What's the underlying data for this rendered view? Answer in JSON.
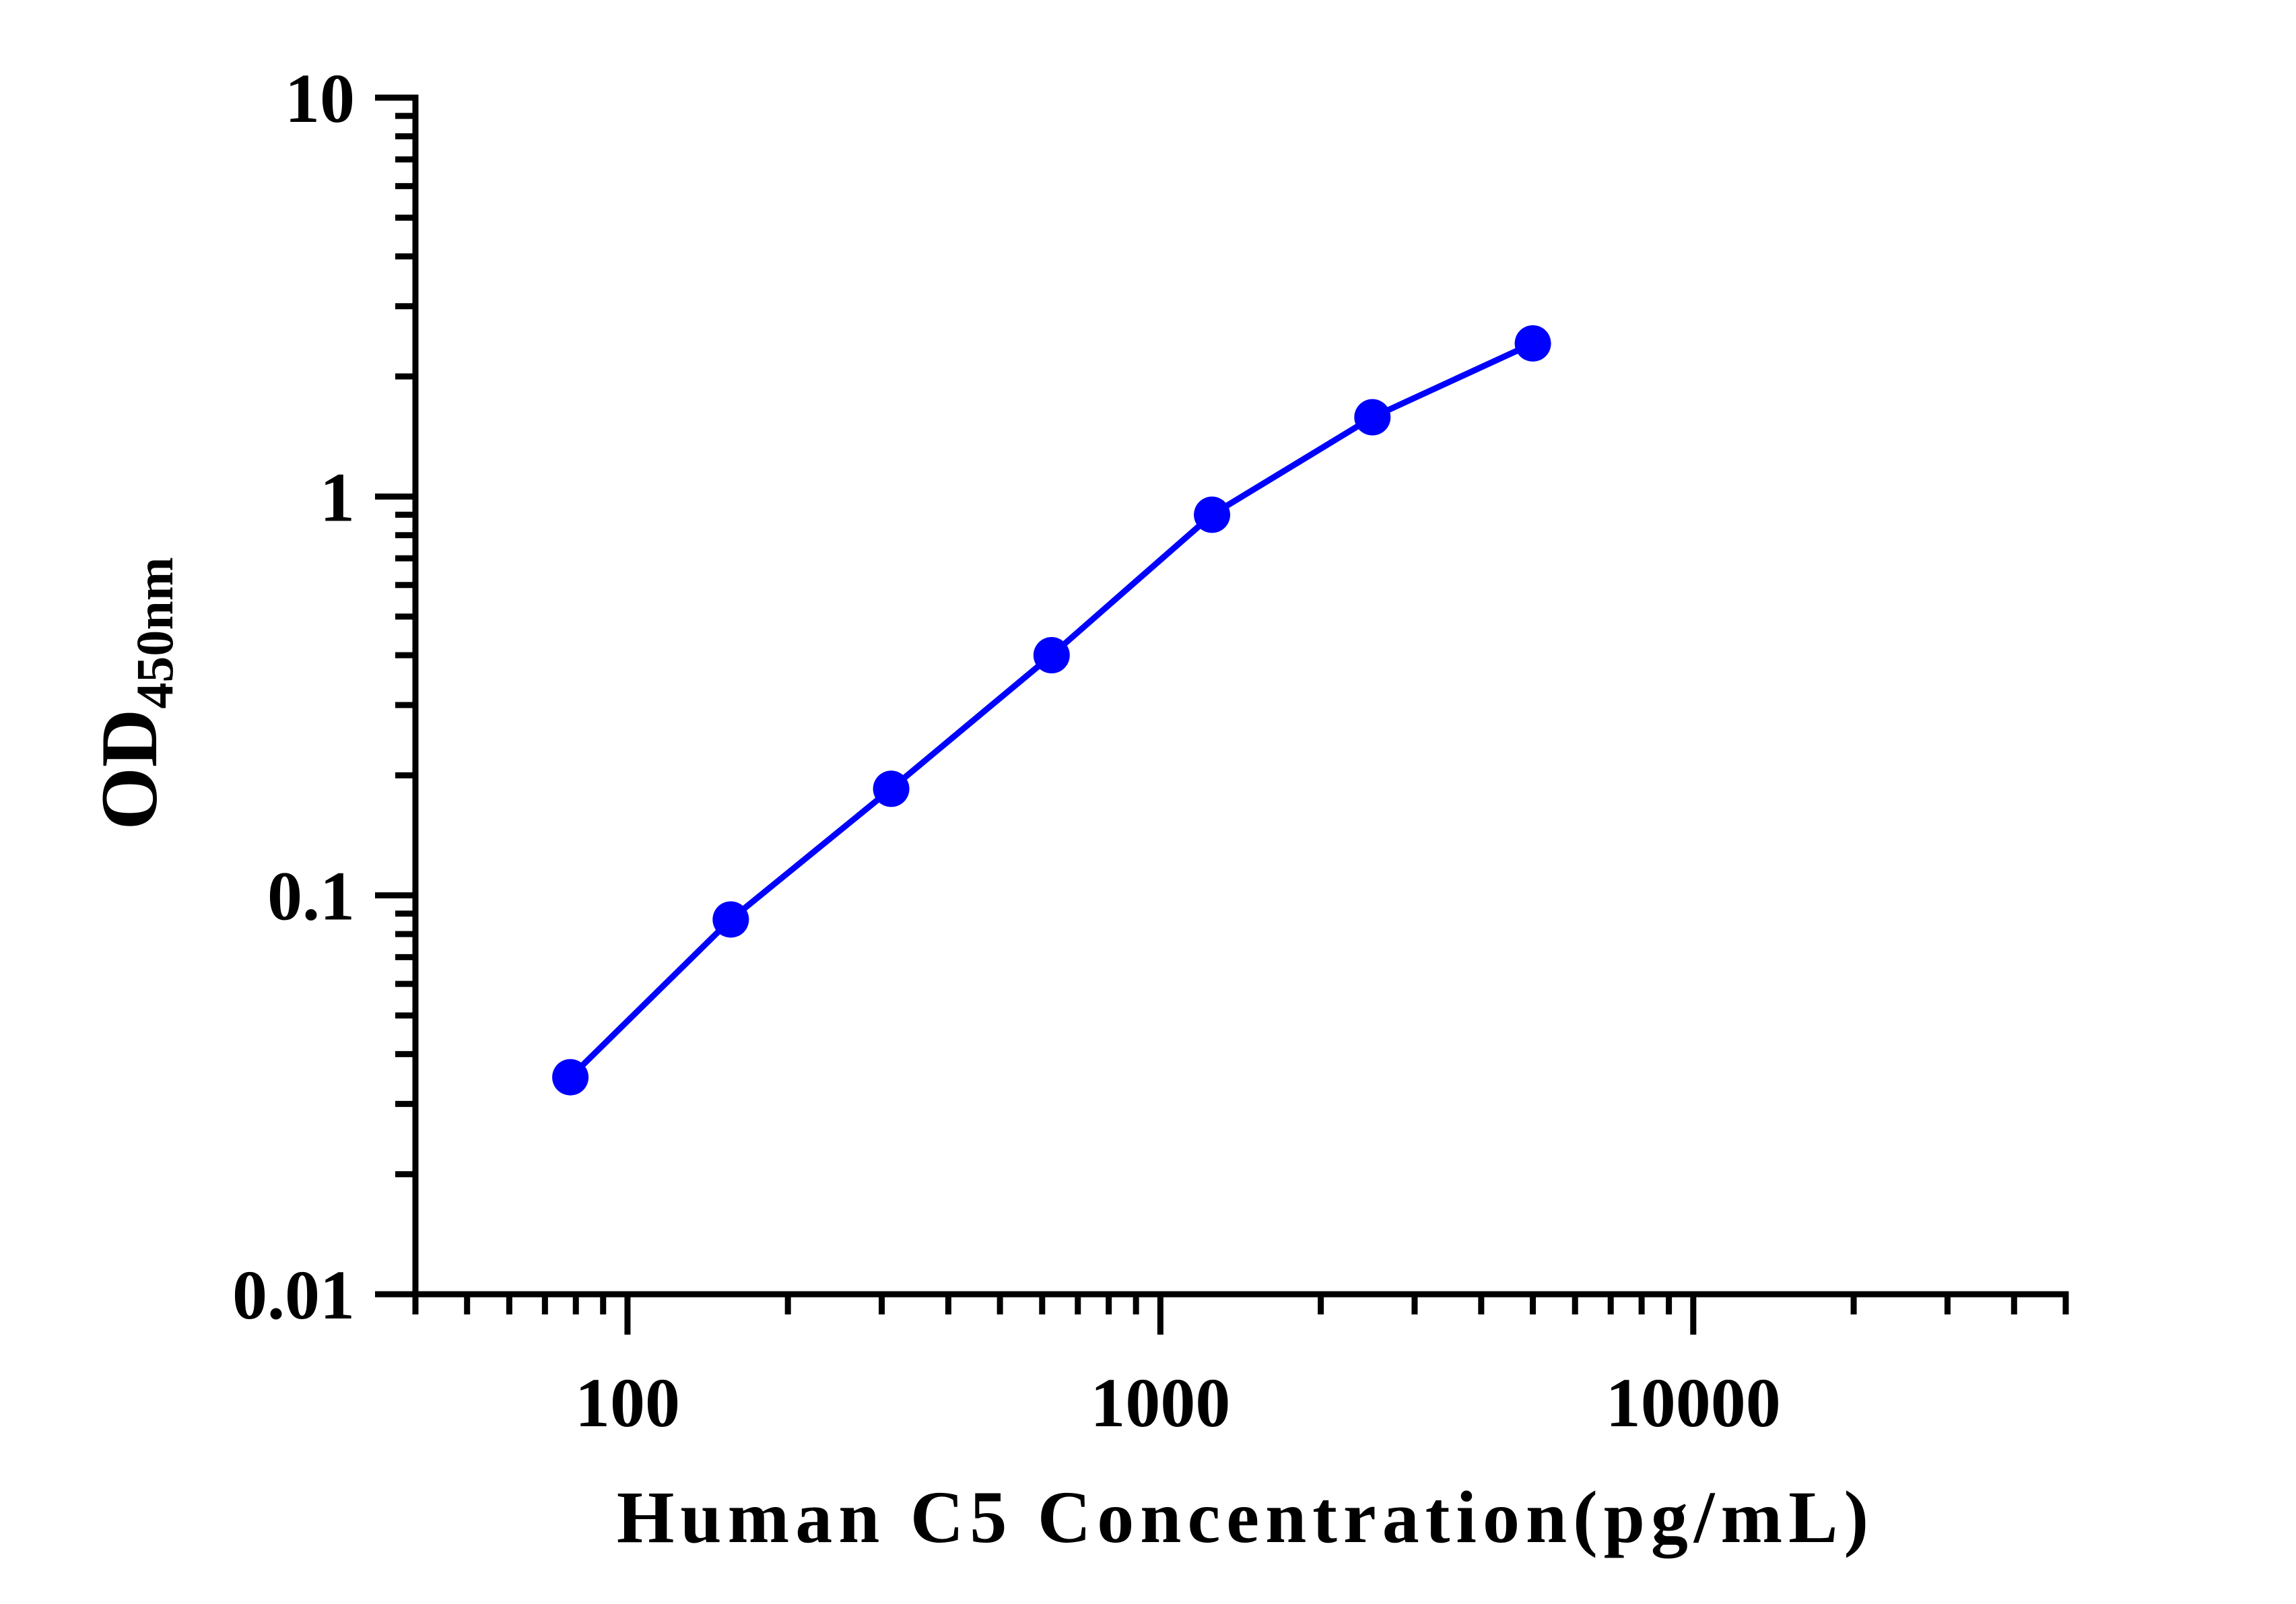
{
  "chart_data": {
    "type": "line",
    "xlabel": "Human C5 Concentration(pg/mL)",
    "ylabel_main": "OD",
    "ylabel_sub": "450nm",
    "x_scale": "log",
    "y_scale": "log",
    "xlim": [
      40,
      50000
    ],
    "ylim": [
      0.01,
      10
    ],
    "x_ticks": [
      100,
      1000,
      10000
    ],
    "x_tick_labels": [
      "100",
      "1000",
      "10000"
    ],
    "y_ticks": [
      0.01,
      0.1,
      1,
      10
    ],
    "y_tick_labels": [
      "0.01",
      "0.1",
      "1",
      "10"
    ],
    "grid": false,
    "series": [
      {
        "color": "#0000ff",
        "x": [
          78.125,
          156.25,
          312.5,
          625,
          1250,
          2500,
          5000
        ],
        "y": [
          0.035,
          0.087,
          0.185,
          0.4,
          0.9,
          1.58,
          2.42
        ]
      }
    ]
  }
}
